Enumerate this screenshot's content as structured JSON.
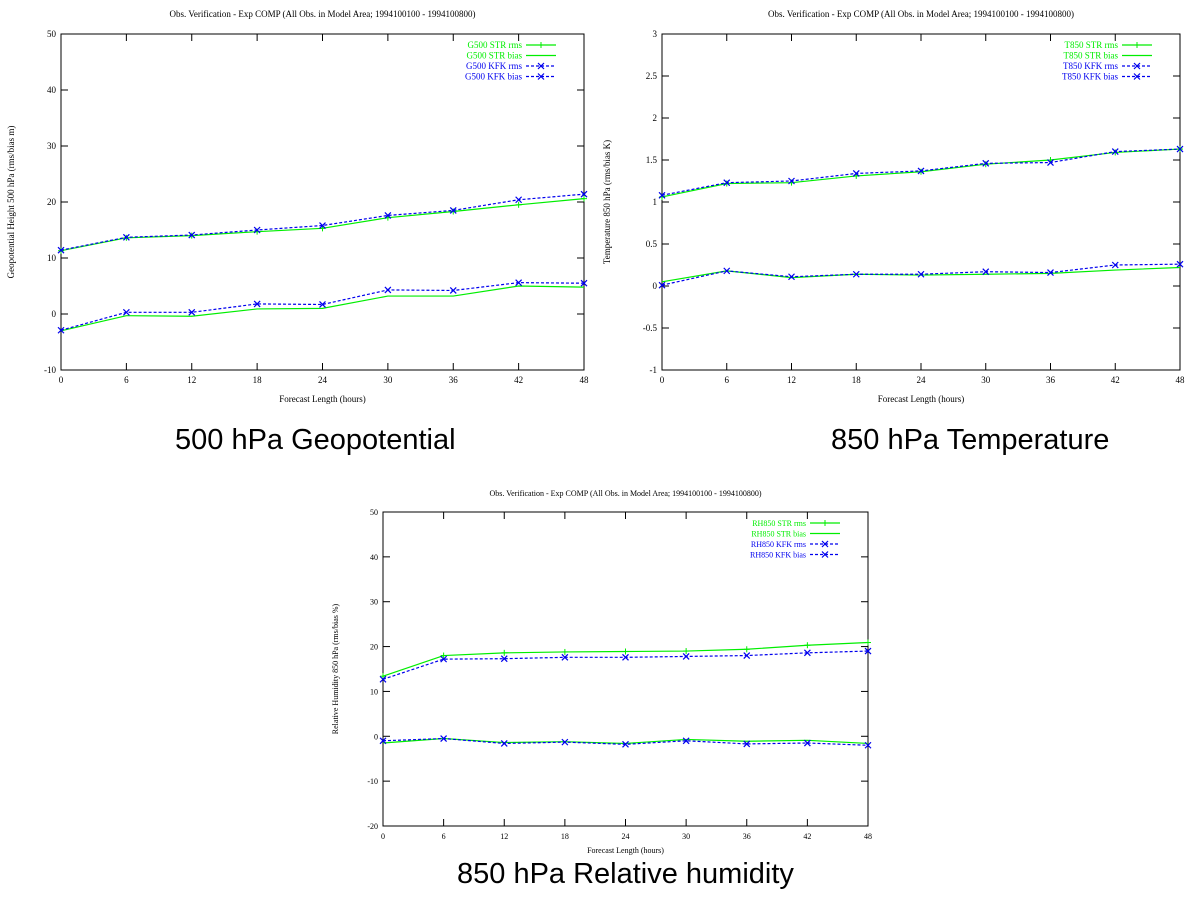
{
  "chart_data": [
    {
      "type": "line",
      "title": "Obs. Verification - Exp COMP (All Obs. in Model Area; 1994100100 - 1994100800)",
      "caption": "500 hPa Geopotential",
      "xlabel": "Forecast Length (hours)",
      "ylabel": "Geopotential Height 500 hPa (rms/bias m)",
      "xlim": [
        0,
        48
      ],
      "ylim": [
        -10,
        50
      ],
      "xticks": [
        0,
        6,
        12,
        18,
        24,
        30,
        36,
        42,
        48
      ],
      "yticks": [
        -10,
        0,
        10,
        20,
        30,
        40,
        50
      ],
      "ytick_labels": [
        "-10",
        "0",
        "10",
        "20",
        "30",
        "40",
        "50"
      ],
      "grid": false,
      "legend_position": "top-right",
      "x": [
        0,
        6,
        12,
        18,
        24,
        30,
        36,
        42,
        48
      ],
      "series": [
        {
          "name": "G500 STR rms",
          "color": "#00ee00",
          "style": "solid",
          "marker": "plus",
          "values": [
            11.3,
            13.6,
            14.0,
            14.7,
            15.3,
            17.2,
            18.3,
            19.5,
            20.6
          ]
        },
        {
          "name": "G500 STR bias",
          "color": "#00ee00",
          "style": "solid",
          "marker": "none",
          "values": [
            -3.0,
            -0.3,
            -0.4,
            0.9,
            1.0,
            3.2,
            3.2,
            5.0,
            4.8
          ]
        },
        {
          "name": "G500 KFK rms",
          "color": "#0000ee",
          "style": "dashed",
          "marker": "x",
          "values": [
            11.4,
            13.7,
            14.1,
            15.0,
            15.8,
            17.6,
            18.5,
            20.4,
            21.4
          ]
        },
        {
          "name": "G500 KFK bias",
          "color": "#0000ee",
          "style": "dashed",
          "marker": "x",
          "values": [
            -2.9,
            0.3,
            0.3,
            1.8,
            1.7,
            4.3,
            4.2,
            5.6,
            5.5
          ]
        }
      ]
    },
    {
      "type": "line",
      "title": "Obs. Verification - Exp COMP (All Obs. in Model Area; 1994100100 - 1994100800)",
      "caption": "850 hPa Temperature",
      "xlabel": "Forecast Length (hours)",
      "ylabel": "Temperature 850 hPa (rms/bias K)",
      "xlim": [
        0,
        48
      ],
      "ylim": [
        -1,
        3
      ],
      "xticks": [
        0,
        6,
        12,
        18,
        24,
        30,
        36,
        42,
        48
      ],
      "yticks": [
        -1,
        -0.5,
        0,
        0.5,
        1,
        1.5,
        2,
        2.5,
        3
      ],
      "ytick_labels": [
        "-1",
        "-0.5",
        "0",
        "0.5",
        "1",
        "1.5",
        "2",
        "2.5",
        "3"
      ],
      "grid": false,
      "legend_position": "top-right",
      "x": [
        0,
        6,
        12,
        18,
        24,
        30,
        36,
        42,
        48
      ],
      "series": [
        {
          "name": "T850 STR rms",
          "color": "#00ee00",
          "style": "solid",
          "marker": "plus",
          "values": [
            1.06,
            1.22,
            1.23,
            1.31,
            1.36,
            1.45,
            1.5,
            1.59,
            1.63
          ]
        },
        {
          "name": "T850 STR bias",
          "color": "#00ee00",
          "style": "solid",
          "marker": "none",
          "values": [
            0.05,
            0.18,
            0.1,
            0.14,
            0.13,
            0.14,
            0.15,
            0.19,
            0.22
          ]
        },
        {
          "name": "T850 KFK rms",
          "color": "#0000ee",
          "style": "dashed",
          "marker": "x",
          "values": [
            1.08,
            1.23,
            1.25,
            1.34,
            1.37,
            1.46,
            1.47,
            1.6,
            1.63
          ]
        },
        {
          "name": "T850 KFK bias",
          "color": "#0000ee",
          "style": "dashed",
          "marker": "x",
          "values": [
            0.01,
            0.18,
            0.11,
            0.14,
            0.14,
            0.17,
            0.16,
            0.25,
            0.26
          ]
        }
      ]
    },
    {
      "type": "line",
      "title": "Obs. Verification - Exp COMP (All Obs. in Model Area; 1994100100 - 1994100800)",
      "caption": "850 hPa Relative humidity",
      "xlabel": "Forecast Length (hours)",
      "ylabel": "Relative Humidity 850 hPa (rms/bias %)",
      "xlim": [
        0,
        48
      ],
      "ylim": [
        -20,
        50
      ],
      "xticks": [
        0,
        6,
        12,
        18,
        24,
        30,
        36,
        42,
        48
      ],
      "yticks": [
        -20,
        -10,
        0,
        10,
        20,
        30,
        40,
        50
      ],
      "ytick_labels": [
        "-20",
        "-10",
        "0",
        "10",
        "20",
        "30",
        "40",
        "50"
      ],
      "grid": false,
      "legend_position": "top-right",
      "x": [
        0,
        6,
        12,
        18,
        24,
        30,
        36,
        42,
        48
      ],
      "series": [
        {
          "name": "RH850 STR rms",
          "color": "#00ee00",
          "style": "solid",
          "marker": "plus",
          "values": [
            13.4,
            18.0,
            18.6,
            18.8,
            18.9,
            19.0,
            19.4,
            20.3,
            20.9
          ]
        },
        {
          "name": "RH850 STR bias",
          "color": "#00ee00",
          "style": "solid",
          "marker": "none",
          "values": [
            -1.5,
            -0.5,
            -1.4,
            -1.2,
            -1.6,
            -0.7,
            -1.1,
            -0.9,
            -1.6
          ]
        },
        {
          "name": "RH850 KFK rms",
          "color": "#0000ee",
          "style": "dashed",
          "marker": "x",
          "values": [
            12.7,
            17.2,
            17.3,
            17.6,
            17.6,
            17.8,
            18.0,
            18.6,
            19.0
          ]
        },
        {
          "name": "RH850 KFK bias",
          "color": "#0000ee",
          "style": "dashed",
          "marker": "x",
          "values": [
            -1.0,
            -0.5,
            -1.6,
            -1.3,
            -1.8,
            -1.0,
            -1.7,
            -1.5,
            -2.0
          ]
        }
      ]
    }
  ]
}
